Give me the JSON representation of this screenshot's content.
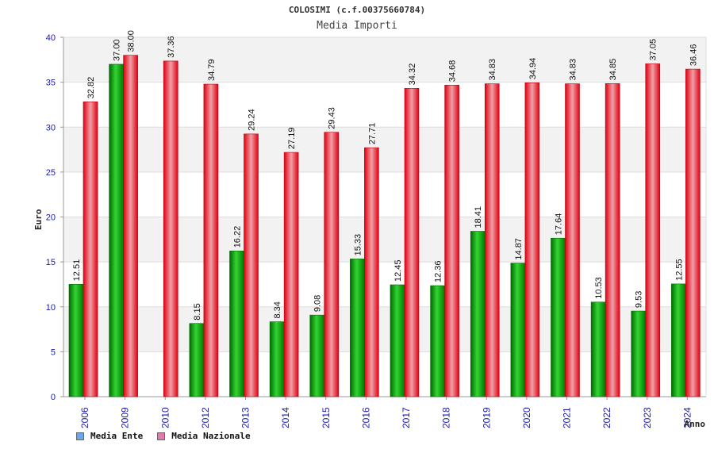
{
  "title": "COLOSIMI (c.f.00375660784)",
  "subtitle": "Media Importi",
  "colors": {
    "ente": "#14b414",
    "nazionale": "#e4202a",
    "legend_ente": "#6aa8e8",
    "legend_nazionale": "#e07aa8",
    "axis_text": "#1a1aa8"
  },
  "legend": [
    {
      "label": "Media Ente",
      "icon": "square-blue-icon"
    },
    {
      "label": "Media Nazionale",
      "icon": "square-pink-icon"
    }
  ],
  "chart_data": {
    "type": "bar",
    "title": "COLOSIMI (c.f.00375660784)",
    "subtitle": "Media Importi",
    "xlabel": "Anno",
    "ylabel": "Euro",
    "ylim": [
      0,
      40
    ],
    "yticks": [
      "0",
      "5",
      "10",
      "15",
      "20",
      "25",
      "30",
      "35",
      "40"
    ],
    "grid": true,
    "legend_position": "bottom-left",
    "categories": [
      "2006",
      "2009",
      "2010",
      "2012",
      "2013",
      "2014",
      "2015",
      "2016",
      "2017",
      "2018",
      "2019",
      "2020",
      "2021",
      "2022",
      "2023",
      "2024"
    ],
    "series": [
      {
        "name": "Media Ente",
        "values": [
          12.51,
          37.0,
          null,
          8.15,
          16.22,
          8.34,
          9.08,
          15.33,
          12.45,
          12.36,
          18.41,
          14.87,
          17.64,
          10.53,
          9.53,
          12.55
        ],
        "labels": [
          "12.51",
          "37.00",
          "",
          "8.15",
          "16.22",
          "8.34",
          "9.08",
          "15.33",
          "12.45",
          "12.36",
          "18.41",
          "14.87",
          "17.64",
          "10.53",
          "9.53",
          "12.55"
        ]
      },
      {
        "name": "Media Nazionale",
        "values": [
          32.82,
          38.0,
          37.36,
          34.79,
          29.24,
          27.19,
          29.43,
          27.71,
          34.32,
          34.68,
          34.83,
          34.94,
          34.83,
          34.85,
          37.05,
          36.46
        ],
        "labels": [
          "32.82",
          "38.00",
          "37.36",
          "34.79",
          "29.24",
          "27.19",
          "29.43",
          "27.71",
          "34.32",
          "34.68",
          "34.83",
          "34.94",
          "34.83",
          "34.85",
          "37.05",
          "36.46"
        ]
      }
    ]
  }
}
